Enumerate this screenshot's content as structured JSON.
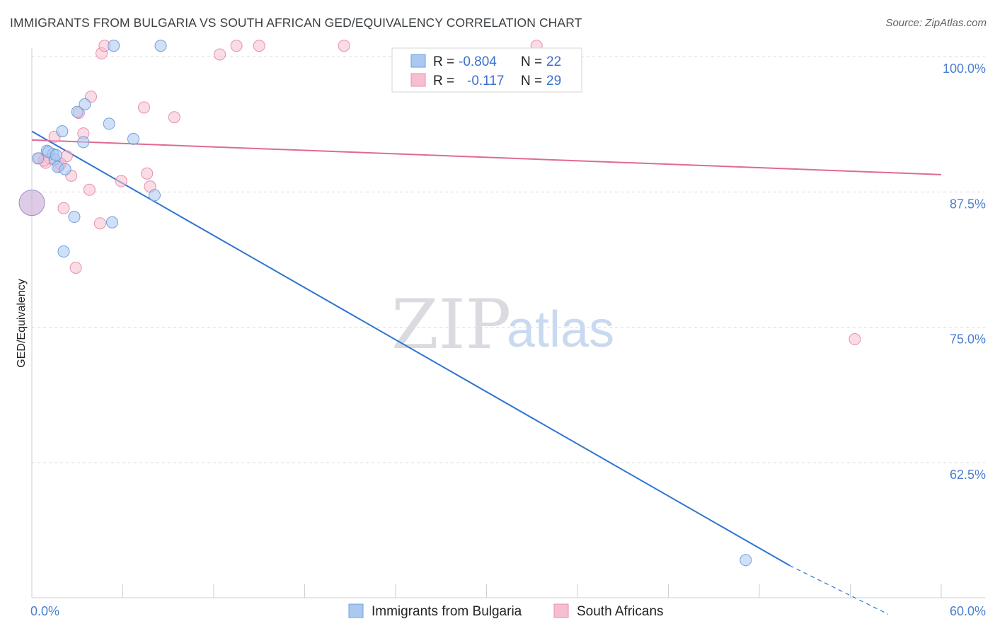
{
  "title": "IMMIGRANTS FROM BULGARIA VS SOUTH AFRICAN GED/EQUIVALENCY CORRELATION CHART",
  "source": "Source: ZipAtlas.com",
  "watermark": {
    "zip": "ZIP",
    "atlas": "atlas"
  },
  "colors": {
    "blue_fill": "#aac8f0",
    "blue_stroke": "#6f9fe0",
    "blue_line": "#2f74d0",
    "pink_fill": "#f6bfd0",
    "pink_stroke": "#e98fac",
    "pink_line": "#e06a93",
    "grid": "#dcdcdc",
    "axis_label": "#4a7fd1"
  },
  "legend": {
    "rows": [
      {
        "r_label": "R = ",
        "r_value": "-0.804",
        "n_label": "N = ",
        "n_value": "22"
      },
      {
        "r_label": "R = ",
        "r_value": "-0.117",
        "n_label": "N = ",
        "n_value": "29"
      }
    ]
  },
  "bottom_legend": [
    "Immigrants from Bulgaria",
    "South Africans"
  ],
  "chart_data": {
    "type": "scatter",
    "title": "IMMIGRANTS FROM BULGARIA VS SOUTH AFRICAN GED/EQUIVALENCY CORRELATION CHART",
    "xlabel": "",
    "ylabel": "GED/Equivalency",
    "xlim": [
      0,
      60
    ],
    "ylim": [
      51,
      101
    ],
    "x_tick_labels": [
      "0.0%",
      "60.0%"
    ],
    "y_ticks": [
      62.5,
      75.0,
      87.5,
      100.0
    ],
    "y_tick_labels": [
      "62.5%",
      "75.0%",
      "87.5%",
      "100.0%"
    ],
    "grid": true,
    "legend_position": "top-center",
    "series": [
      {
        "name": "Immigrants from Bulgaria",
        "color": "#aac8f0",
        "r": -0.804,
        "n": 22,
        "points": [
          [
            0.4,
            90.6
          ],
          [
            1.0,
            91.3
          ],
          [
            1.4,
            91.0
          ],
          [
            1.5,
            90.5
          ],
          [
            1.7,
            89.8
          ],
          [
            2.2,
            89.6
          ],
          [
            2.0,
            93.1
          ],
          [
            2.8,
            85.2
          ],
          [
            3.0,
            94.9
          ],
          [
            3.5,
            95.6
          ],
          [
            3.4,
            92.1
          ],
          [
            5.1,
            93.8
          ],
          [
            5.3,
            84.7
          ],
          [
            5.4,
            101.0
          ],
          [
            6.7,
            92.4
          ],
          [
            8.1,
            87.2
          ],
          [
            8.5,
            101.0
          ],
          [
            2.1,
            82.0
          ],
          [
            1.1,
            91.2
          ],
          [
            1.6,
            90.9
          ],
          [
            0.0,
            86.5
          ],
          [
            47.1,
            53.5
          ]
        ],
        "trend": {
          "x": [
            0,
            50
          ],
          "y": [
            93.1,
            53.0
          ],
          "dashed_extension_to": [
            56.5,
            48.5
          ]
        }
      },
      {
        "name": "South Africans",
        "color": "#f6bfd0",
        "r": -0.117,
        "n": 29,
        "points": [
          [
            0.5,
            90.6
          ],
          [
            0.9,
            90.2
          ],
          [
            1.5,
            92.6
          ],
          [
            1.8,
            89.9
          ],
          [
            2.3,
            90.8
          ],
          [
            2.6,
            89.0
          ],
          [
            2.1,
            86.0
          ],
          [
            3.1,
            94.8
          ],
          [
            3.4,
            92.9
          ],
          [
            3.8,
            87.7
          ],
          [
            3.9,
            96.3
          ],
          [
            4.5,
            84.6
          ],
          [
            4.6,
            100.3
          ],
          [
            4.8,
            101.0
          ],
          [
            5.9,
            88.5
          ],
          [
            7.4,
            95.3
          ],
          [
            7.6,
            89.2
          ],
          [
            7.8,
            88.0
          ],
          [
            9.4,
            94.4
          ],
          [
            12.4,
            100.2
          ],
          [
            13.5,
            101.0
          ],
          [
            15.0,
            101.0
          ],
          [
            20.6,
            101.0
          ],
          [
            33.3,
            101.0
          ],
          [
            54.3,
            73.9
          ],
          [
            2.9,
            80.5
          ],
          [
            1.2,
            90.6
          ],
          [
            0.8,
            90.4
          ],
          [
            1.9,
            90.1
          ]
        ],
        "trend": {
          "x": [
            0,
            60
          ],
          "y": [
            92.3,
            89.1
          ]
        }
      }
    ]
  }
}
